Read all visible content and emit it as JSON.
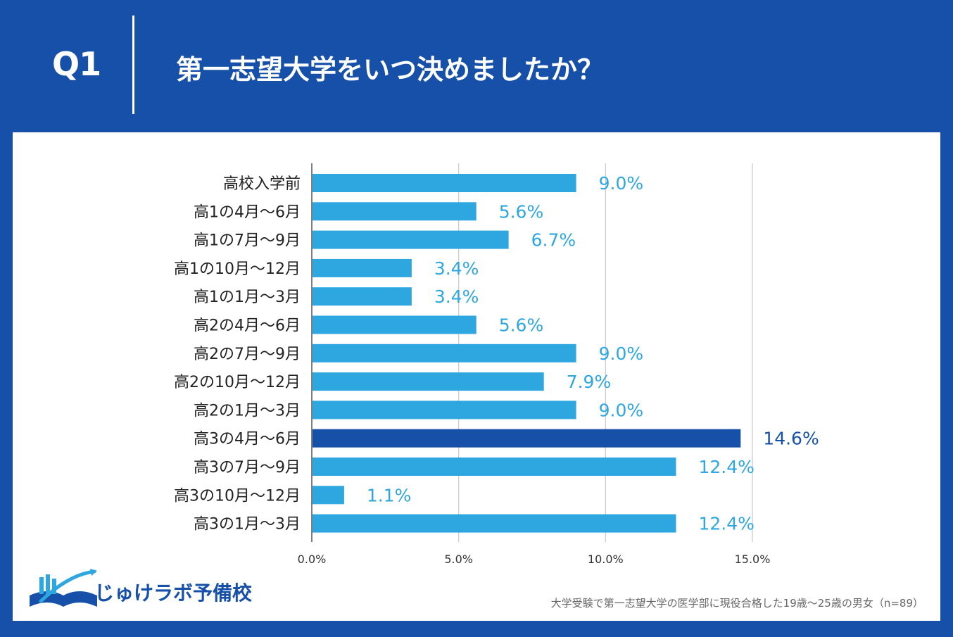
{
  "header": {
    "q_label": "Q1",
    "question": "第一志望大学をいつ決めましたか？"
  },
  "brand": {
    "name": "じゅけラボ予備校"
  },
  "footnote": "大学受験で第一志望大学の医学部に現役合格した19歳～25歳の男女（n=89）",
  "colors": {
    "background": "#1650a8",
    "bar": "#2ea7e0",
    "highlight_bar": "#1650a8",
    "value_label": "#2ea7e0",
    "highlight_label": "#1650a8",
    "grid": "#c8c8c8",
    "category_text": "#222222",
    "tick_text": "#333333"
  },
  "chart_data": {
    "type": "bar",
    "orientation": "horizontal",
    "title": "第一志望大学をいつ決めましたか？",
    "categories": [
      "高校入学前",
      "高1の4月～6月",
      "高1の7月～9月",
      "高1の10月～12月",
      "高1の1月～3月",
      "高2の4月～6月",
      "高2の7月～9月",
      "高2の10月～12月",
      "高2の1月～3月",
      "高3の4月～6月",
      "高3の7月～9月",
      "高3の10月～12月",
      "高3の1月～3月"
    ],
    "values": [
      9.0,
      5.6,
      6.7,
      3.4,
      3.4,
      5.6,
      9.0,
      7.9,
      9.0,
      14.6,
      12.4,
      1.1,
      12.4
    ],
    "value_labels": [
      "9.0%",
      "5.6%",
      "6.7%",
      "3.4%",
      "3.4%",
      "5.6%",
      "9.0%",
      "7.9%",
      "9.0%",
      "14.6%",
      "12.4%",
      "1.1%",
      "12.4%"
    ],
    "highlight_index": 9,
    "xlim": [
      0,
      15
    ],
    "xticks": [
      0,
      5,
      10,
      15
    ],
    "xtick_labels": [
      "0.0%",
      "5.0%",
      "10.0%",
      "15.0%"
    ],
    "xlabel": "",
    "ylabel": "",
    "grid": true
  }
}
